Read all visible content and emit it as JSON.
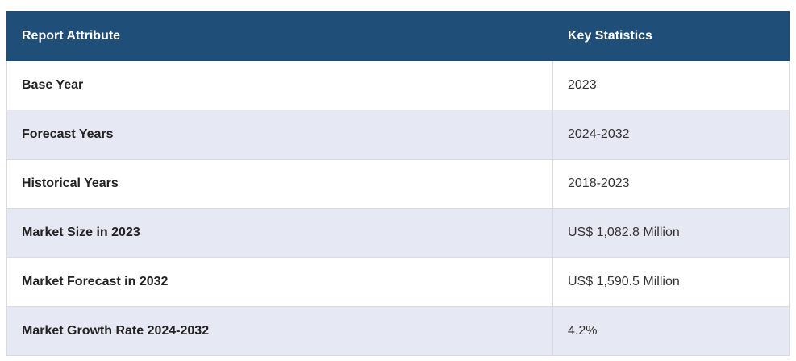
{
  "table": {
    "headers": [
      "Report Attribute",
      "Key Statistics"
    ],
    "rows": [
      {
        "attribute": "Base Year",
        "value": "2023"
      },
      {
        "attribute": "Forecast Years",
        "value": "2024-2032"
      },
      {
        "attribute": "Historical Years",
        "value": "2018-2023"
      },
      {
        "attribute": "Market Size in 2023",
        "value": "US$ 1,082.8 Million"
      },
      {
        "attribute": "Market Forecast in 2032",
        "value": "US$ 1,590.5 Million"
      },
      {
        "attribute": "Market Growth Rate 2024-2032",
        "value": "4.2%"
      }
    ]
  },
  "colors": {
    "header_bg": "#1f4e79",
    "header_text": "#ffffff",
    "row_alt_bg": "#e6e8f3",
    "border": "#d9dbe0"
  }
}
